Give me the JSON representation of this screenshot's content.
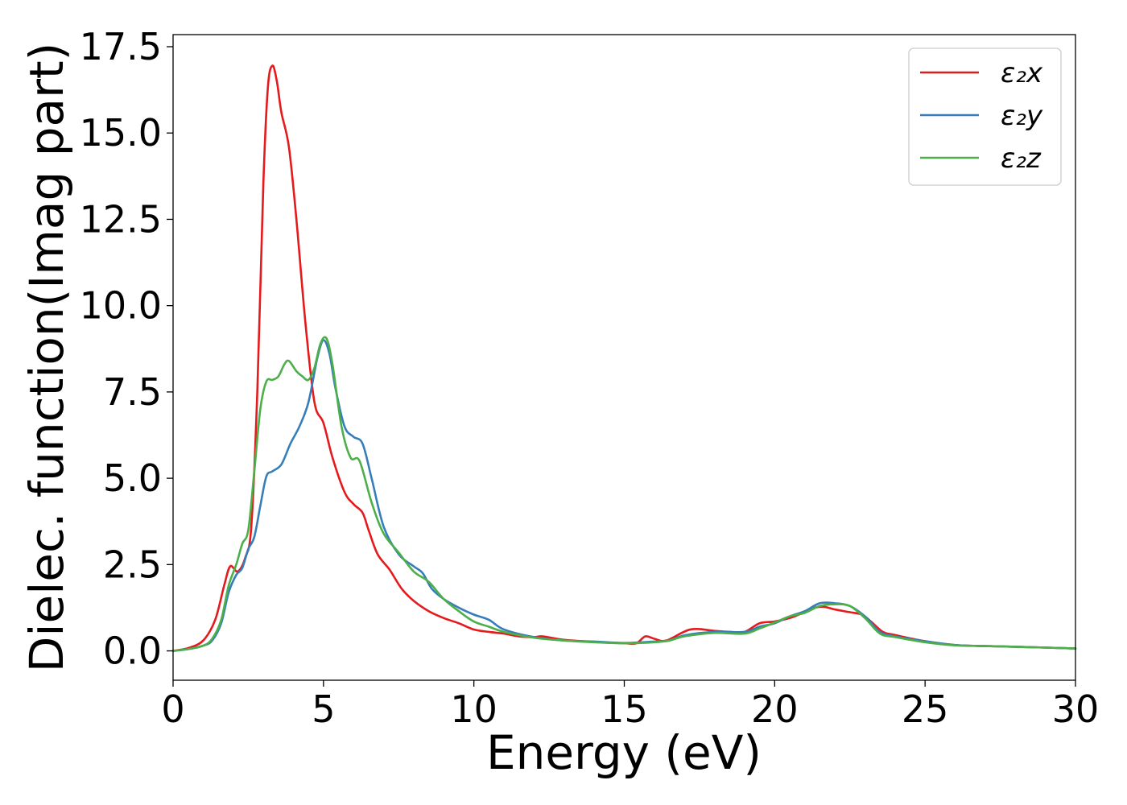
{
  "chart_data": {
    "type": "line",
    "title": "",
    "xlabel": "Energy (eV)",
    "ylabel": "Dielec. function(Imag part)",
    "xlim": [
      0,
      30
    ],
    "ylim": [
      -0.85,
      17.85
    ],
    "xticks": [
      0,
      5,
      10,
      15,
      20,
      25,
      30
    ],
    "xtick_labels": [
      "0",
      "5",
      "10",
      "15",
      "20",
      "25",
      "30"
    ],
    "yticks": [
      0,
      2.5,
      5,
      7.5,
      10,
      12.5,
      15,
      17.5
    ],
    "ytick_labels": [
      "0.0",
      "2.5",
      "5.0",
      "7.5",
      "10.0",
      "12.5",
      "15.0",
      "17.5"
    ],
    "grid": false,
    "legend_position": "top-right",
    "series": [
      {
        "name": "ε₂x",
        "color": "#e41a1c",
        "points": [
          [
            0,
            0
          ],
          [
            0.5,
            0.08
          ],
          [
            1.0,
            0.3
          ],
          [
            1.4,
            0.9
          ],
          [
            1.7,
            1.9
          ],
          [
            1.9,
            2.45
          ],
          [
            2.15,
            2.3
          ],
          [
            2.4,
            2.7
          ],
          [
            2.6,
            3.6
          ],
          [
            2.8,
            7.5
          ],
          [
            3.0,
            13.5
          ],
          [
            3.15,
            16.3
          ],
          [
            3.3,
            16.95
          ],
          [
            3.45,
            16.5
          ],
          [
            3.6,
            15.6
          ],
          [
            3.85,
            14.6
          ],
          [
            4.1,
            12.5
          ],
          [
            4.4,
            9.5
          ],
          [
            4.7,
            7.2
          ],
          [
            5.0,
            6.6
          ],
          [
            5.3,
            5.6
          ],
          [
            5.7,
            4.6
          ],
          [
            6.0,
            4.25
          ],
          [
            6.3,
            4.0
          ],
          [
            6.5,
            3.5
          ],
          [
            6.8,
            2.8
          ],
          [
            7.2,
            2.35
          ],
          [
            7.6,
            1.8
          ],
          [
            8.0,
            1.45
          ],
          [
            8.5,
            1.15
          ],
          [
            9.0,
            0.95
          ],
          [
            9.5,
            0.8
          ],
          [
            10.0,
            0.62
          ],
          [
            10.5,
            0.55
          ],
          [
            11.0,
            0.5
          ],
          [
            11.5,
            0.42
          ],
          [
            12.0,
            0.4
          ],
          [
            12.3,
            0.42
          ],
          [
            13.0,
            0.32
          ],
          [
            14.0,
            0.26
          ],
          [
            15.0,
            0.22
          ],
          [
            15.4,
            0.22
          ],
          [
            15.7,
            0.42
          ],
          [
            16.0,
            0.35
          ],
          [
            16.4,
            0.3
          ],
          [
            17.2,
            0.62
          ],
          [
            18.0,
            0.58
          ],
          [
            18.5,
            0.55
          ],
          [
            19.0,
            0.55
          ],
          [
            19.5,
            0.8
          ],
          [
            20.0,
            0.85
          ],
          [
            20.5,
            0.95
          ],
          [
            20.8,
            1.05
          ],
          [
            21.2,
            1.22
          ],
          [
            21.6,
            1.28
          ],
          [
            22.0,
            1.2
          ],
          [
            22.5,
            1.12
          ],
          [
            22.9,
            1.05
          ],
          [
            23.2,
            0.85
          ],
          [
            23.6,
            0.55
          ],
          [
            24.0,
            0.46
          ],
          [
            25.0,
            0.28
          ],
          [
            26.0,
            0.17
          ],
          [
            27.0,
            0.14
          ],
          [
            28.0,
            0.12
          ],
          [
            30.0,
            0.07
          ]
        ]
      },
      {
        "name": "ε₂y",
        "color": "#377eb8",
        "points": [
          [
            0,
            0
          ],
          [
            0.5,
            0.05
          ],
          [
            1.0,
            0.15
          ],
          [
            1.3,
            0.3
          ],
          [
            1.6,
            0.8
          ],
          [
            1.85,
            1.7
          ],
          [
            2.1,
            2.2
          ],
          [
            2.3,
            2.4
          ],
          [
            2.5,
            2.95
          ],
          [
            2.7,
            3.3
          ],
          [
            2.9,
            4.2
          ],
          [
            3.1,
            5.05
          ],
          [
            3.3,
            5.2
          ],
          [
            3.6,
            5.4
          ],
          [
            3.9,
            6.0
          ],
          [
            4.2,
            6.5
          ],
          [
            4.5,
            7.2
          ],
          [
            4.8,
            8.5
          ],
          [
            5.0,
            9.0
          ],
          [
            5.2,
            8.6
          ],
          [
            5.4,
            7.6
          ],
          [
            5.7,
            6.5
          ],
          [
            6.0,
            6.2
          ],
          [
            6.3,
            6.0
          ],
          [
            6.6,
            5.0
          ],
          [
            7.0,
            3.6
          ],
          [
            7.5,
            2.8
          ],
          [
            8.0,
            2.45
          ],
          [
            8.3,
            2.25
          ],
          [
            8.6,
            1.8
          ],
          [
            9.0,
            1.5
          ],
          [
            9.5,
            1.25
          ],
          [
            10.0,
            1.05
          ],
          [
            10.5,
            0.9
          ],
          [
            11.0,
            0.62
          ],
          [
            12.0,
            0.4
          ],
          [
            13.0,
            0.3
          ],
          [
            14.0,
            0.27
          ],
          [
            15.0,
            0.23
          ],
          [
            16.0,
            0.27
          ],
          [
            16.5,
            0.3
          ],
          [
            17.0,
            0.45
          ],
          [
            18.0,
            0.55
          ],
          [
            19.0,
            0.55
          ],
          [
            19.5,
            0.7
          ],
          [
            20.0,
            0.8
          ],
          [
            20.5,
            1.0
          ],
          [
            21.0,
            1.15
          ],
          [
            21.5,
            1.38
          ],
          [
            22.0,
            1.38
          ],
          [
            22.5,
            1.3
          ],
          [
            23.0,
            1.0
          ],
          [
            23.5,
            0.55
          ],
          [
            24.0,
            0.42
          ],
          [
            25.0,
            0.28
          ],
          [
            26.0,
            0.17
          ],
          [
            27.0,
            0.14
          ],
          [
            28.0,
            0.12
          ],
          [
            30.0,
            0.07
          ]
        ]
      },
      {
        "name": "ε₂z",
        "color": "#4daf4a",
        "points": [
          [
            0,
            0
          ],
          [
            0.5,
            0.05
          ],
          [
            1.0,
            0.15
          ],
          [
            1.3,
            0.35
          ],
          [
            1.6,
            0.9
          ],
          [
            1.85,
            1.9
          ],
          [
            2.1,
            2.5
          ],
          [
            2.3,
            3.1
          ],
          [
            2.5,
            3.5
          ],
          [
            2.7,
            5.2
          ],
          [
            2.9,
            7.0
          ],
          [
            3.1,
            7.8
          ],
          [
            3.3,
            7.85
          ],
          [
            3.5,
            7.95
          ],
          [
            3.7,
            8.3
          ],
          [
            3.85,
            8.4
          ],
          [
            4.1,
            8.1
          ],
          [
            4.3,
            7.95
          ],
          [
            4.5,
            7.85
          ],
          [
            4.7,
            8.2
          ],
          [
            4.9,
            8.9
          ],
          [
            5.1,
            9.05
          ],
          [
            5.3,
            8.3
          ],
          [
            5.6,
            6.5
          ],
          [
            5.9,
            5.6
          ],
          [
            6.2,
            5.5
          ],
          [
            6.6,
            4.3
          ],
          [
            7.0,
            3.4
          ],
          [
            7.5,
            2.85
          ],
          [
            8.0,
            2.3
          ],
          [
            8.5,
            2.0
          ],
          [
            9.0,
            1.5
          ],
          [
            9.5,
            1.15
          ],
          [
            10.0,
            0.85
          ],
          [
            10.5,
            0.7
          ],
          [
            11.0,
            0.55
          ],
          [
            12.0,
            0.38
          ],
          [
            13.0,
            0.3
          ],
          [
            14.0,
            0.25
          ],
          [
            15.0,
            0.22
          ],
          [
            16.0,
            0.25
          ],
          [
            16.5,
            0.3
          ],
          [
            17.0,
            0.42
          ],
          [
            18.0,
            0.52
          ],
          [
            19.0,
            0.5
          ],
          [
            19.5,
            0.65
          ],
          [
            20.0,
            0.82
          ],
          [
            20.5,
            1.0
          ],
          [
            21.0,
            1.1
          ],
          [
            21.5,
            1.3
          ],
          [
            22.0,
            1.35
          ],
          [
            22.5,
            1.3
          ],
          [
            23.0,
            0.95
          ],
          [
            23.5,
            0.5
          ],
          [
            24.0,
            0.4
          ],
          [
            25.0,
            0.25
          ],
          [
            26.0,
            0.16
          ],
          [
            27.0,
            0.14
          ],
          [
            28.0,
            0.12
          ],
          [
            30.0,
            0.07
          ]
        ]
      }
    ]
  }
}
